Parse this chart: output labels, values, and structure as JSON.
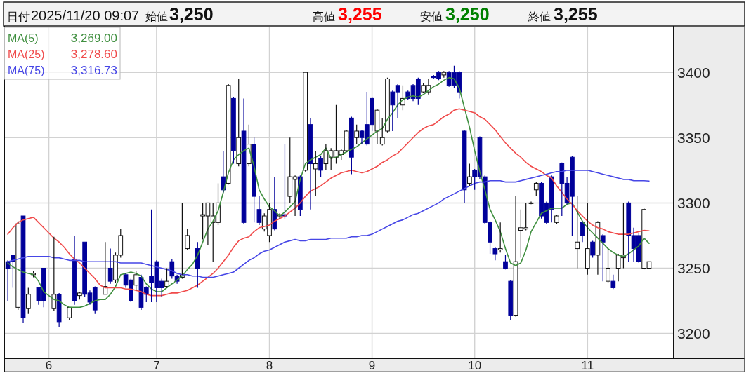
{
  "chart_data": {
    "type": "candlestick",
    "annotations": [
      "日付",
      "2025/11/20 09:07",
      "始値",
      "3,250",
      "高値",
      "3,255",
      "安値",
      "3,250",
      "終値",
      "3,255",
      "3,269.00",
      "3,278.60",
      "3,316.73"
    ],
    "categories": [
      null,
      null,
      null,
      null,
      null,
      null,
      null,
      null,
      "6",
      null,
      null,
      null,
      null,
      null,
      null,
      null,
      null,
      null,
      null,
      null,
      null,
      null,
      null,
      null,
      null,
      null,
      null,
      null,
      null,
      "7",
      null,
      null,
      null,
      null,
      null,
      null,
      null,
      null,
      null,
      null,
      null,
      null,
      null,
      null,
      null,
      null,
      null,
      null,
      null,
      null,
      null,
      "8",
      null,
      null,
      null,
      null,
      null,
      null,
      null,
      null,
      null,
      null,
      null,
      null,
      null,
      null,
      null,
      null,
      null,
      null,
      null,
      "9",
      null,
      null,
      null,
      null,
      null,
      null,
      null,
      null,
      null,
      null,
      null,
      null,
      null,
      null,
      null,
      null,
      null,
      null,
      null,
      "10",
      null,
      null,
      null,
      null,
      null,
      null,
      null,
      null,
      null,
      null,
      null,
      null,
      null,
      null,
      null,
      null,
      null,
      null,
      null,
      null,
      null,
      "11",
      null,
      null,
      null,
      null,
      null,
      null,
      null,
      null,
      null,
      null,
      null,
      null
    ],
    "ohlc": [
      [
        3255,
        3256,
        3225,
        3250
      ],
      [
        3260,
        3260,
        3235,
        3255
      ],
      [
        3220,
        3286,
        3218,
        3284
      ],
      [
        3290,
        3290,
        3208,
        3212
      ],
      [
        3219,
        3235,
        3215,
        3230
      ],
      [
        3245,
        3248,
        3243,
        3246
      ],
      [
        3235,
        3235,
        3222,
        3225
      ],
      [
        3250,
        3250,
        3220,
        3225
      ],
      null,
      [
        3219,
        3274,
        3217,
        3230
      ],
      [
        3230,
        3231,
        3205,
        3209
      ],
      null,
      [
        3212,
        3220,
        3210,
        3220
      ],
      [
        3257,
        3275,
        3222,
        3225
      ],
      [
        3229,
        3232,
        3226,
        3231
      ],
      [
        3270,
        3270,
        3228,
        3230
      ],
      [
        3231,
        3233,
        3222,
        3224
      ],
      [
        3235,
        3236,
        3215,
        3218
      ],
      null,
      [
        3230,
        3270,
        3230,
        3236
      ],
      [
        3250,
        3265,
        3238,
        3240
      ],
      [
        3241,
        3262,
        3239,
        3260
      ],
      [
        3260,
        3280,
        3258,
        3275
      ],
      [
        3245,
        3246,
        3235,
        3237
      ],
      [
        3241,
        3242,
        3224,
        3225
      ],
      [
        3237,
        3248,
        3233,
        3245
      ],
      [
        3243,
        3245,
        3218,
        3220
      ],
      [
        3235,
        3236,
        3224,
        3230
      ],
      [
        3244,
        3295,
        3224,
        3239
      ],
      [
        3255,
        3256,
        3224,
        3235
      ],
      [
        3240,
        3242,
        3228,
        3235
      ],
      [
        3236,
        3250,
        3235,
        3240
      ],
      [
        3255,
        3257,
        3242,
        3244
      ],
      [
        3244,
        3245,
        3238,
        3240
      ],
      [
        3243,
        3300,
        3242,
        3245
      ],
      [
        3265,
        3280,
        3264,
        3275
      ],
      null,
      [
        3265,
        3270,
        3235,
        3250
      ],
      [
        3290,
        3300,
        3272,
        3291
      ],
      [
        3290,
        3300,
        3268,
        3300
      ],
      [
        3285,
        3300,
        3255,
        3290
      ],
      [
        3285,
        3315,
        3283,
        3300
      ],
      [
        3320,
        3340,
        3308,
        3310
      ],
      [
        3315,
        3391,
        3314,
        3390
      ],
      [
        3380,
        3381,
        3330,
        3340
      ],
      [
        3330,
        3395,
        3328,
        3350
      ],
      [
        3355,
        3380,
        3284,
        3285
      ],
      [
        3330,
        3360,
        3328,
        3345
      ],
      [
        3345,
        3350,
        3285,
        3305
      ],
      [
        3295,
        3305,
        3283,
        3285
      ],
      [
        3280,
        3292,
        3278,
        3290
      ],
      [
        3275,
        3300,
        3270,
        3295
      ],
      [
        3295,
        3320,
        3279,
        3280
      ],
      [
        3290,
        3292,
        3288,
        3291
      ],
      [
        3291,
        3345,
        3288,
        3290
      ],
      [
        3305,
        3350,
        3300,
        3320
      ],
      [
        3318,
        3321,
        3290,
        3320
      ],
      [
        3320,
        3321,
        3290,
        3295
      ],
      [
        3325,
        3400,
        3324,
        3400
      ],
      [
        3360,
        3365,
        3295,
        3330
      ],
      [
        3326,
        3340,
        3305,
        3330
      ],
      [
        3334,
        3336,
        3320,
        3325
      ],
      [
        3330,
        3345,
        3325,
        3340
      ],
      [
        3335,
        3342,
        3325,
        3340
      ],
      [
        3335,
        3375,
        3330,
        3340
      ],
      [
        3337,
        3341,
        3333,
        3340
      ],
      [
        3340,
        3356,
        3339,
        3355
      ],
      [
        3365,
        3366,
        3322,
        3335
      ],
      [
        3350,
        3360,
        3345,
        3355
      ],
      [
        3355,
        3356,
        3345,
        3350
      ],
      [
        3360,
        3385,
        3344,
        3345
      ],
      [
        3380,
        3381,
        3355,
        3360
      ],
      [
        3355,
        3372,
        3345,
        3371
      ],
      [
        3345,
        3365,
        3344,
        3350
      ],
      [
        3355,
        3396,
        3354,
        3395
      ],
      [
        3385,
        3386,
        3355,
        3375
      ],
      [
        3390,
        3391,
        3365,
        3385
      ],
      [
        3375,
        3390,
        3371,
        3380
      ],
      [
        3385,
        3386,
        3379,
        3380
      ],
      [
        3390,
        3391,
        3378,
        3380
      ],
      [
        3395,
        3396,
        3375,
        3380
      ],
      [
        3385,
        3392,
        3384,
        3390
      ],
      [
        3385,
        3395,
        3383,
        3390
      ],
      [
        3397,
        3398,
        3395,
        3396
      ],
      [
        3400,
        3401,
        3394,
        3395
      ],
      [
        3398,
        3401,
        3396,
        3400
      ],
      [
        3400,
        3401,
        3389,
        3390
      ],
      [
        3400,
        3405,
        3388,
        3390
      ],
      [
        3400,
        3401,
        3380,
        3385
      ],
      [
        3355,
        3356,
        3300,
        3310
      ],
      [
        3315,
        3330,
        3313,
        3320
      ],
      [
        3325,
        3326,
        3310,
        3320
      ],
      [
        3350,
        3351,
        3318,
        3320
      ],
      [
        3320,
        3321,
        3284,
        3285
      ],
      [
        3285,
        3286,
        3261,
        3270
      ],
      [
        3265,
        3266,
        3256,
        3261
      ],
      [
        3264,
        3285,
        3262,
        3265
      ],
      [
        3255,
        3260,
        3249,
        3250
      ],
      [
        3240,
        3241,
        3210,
        3214
      ],
      [
        3214,
        3305,
        3213,
        3255
      ],
      [
        3279,
        3295,
        3258,
        3281
      ],
      [
        3280,
        3300,
        3279,
        3281
      ],
      [
        3300,
        3301,
        3299,
        3300
      ],
      [
        3310,
        3316,
        3305,
        3315
      ],
      [
        3315,
        3316,
        3288,
        3290
      ],
      [
        3300,
        3301,
        3284,
        3285
      ],
      [
        3320,
        3321,
        3285,
        3295
      ],
      [
        3285,
        3291,
        3284,
        3290
      ],
      [
        3330,
        3331,
        3290,
        3315
      ],
      [
        3315,
        3320,
        3299,
        3300
      ],
      [
        3335,
        3336,
        3275,
        3305
      ],
      [
        3265,
        3305,
        3250,
        3270
      ],
      [
        3285,
        3286,
        3270,
        3275
      ],
      [
        3250,
        3300,
        3245,
        3265
      ],
      [
        3270,
        3271,
        3258,
        3260
      ],
      [
        3260,
        3286,
        3245,
        3285
      ],
      [
        3275,
        3276,
        3240,
        3270
      ],
      [
        3240,
        3265,
        3239,
        3250
      ],
      [
        3240,
        3245,
        3234,
        3235
      ],
      [
        3250,
        3261,
        3240,
        3260
      ],
      [
        3258,
        3300,
        3250,
        3260
      ],
      [
        3300,
        3301,
        3255,
        3275
      ],
      [
        3275,
        3281,
        3255,
        3265
      ],
      [
        3275,
        3277,
        3254,
        3255
      ],
      [
        3250,
        3296,
        3249,
        3295
      ],
      [
        3250,
        3255,
        3250,
        3255
      ]
    ],
    "series": [
      {
        "name": "MA(5)",
        "type": "line",
        "color": "#3f8f3f",
        "values": [
          3254,
          3251,
          3249,
          3247,
          3246,
          3245,
          3240,
          3232,
          3229,
          3226,
          3225,
          3222,
          3220,
          3220,
          3220,
          3221,
          3223,
          3225,
          3226,
          3226,
          3230,
          3236,
          3245,
          3246,
          3247,
          3246,
          3244,
          3238,
          3234,
          3232,
          3232,
          3235,
          3238,
          3241,
          3244,
          3249,
          3253,
          3260,
          3270,
          3280,
          3286,
          3294,
          3308,
          3323,
          3333,
          3337,
          3340,
          3342,
          3328,
          3310,
          3303,
          3297,
          3294,
          3290,
          3293,
          3297,
          3301,
          3318,
          3330,
          3333,
          3335,
          3337,
          3342,
          3334,
          3335,
          3337,
          3339,
          3341,
          3343,
          3346,
          3349,
          3352,
          3355,
          3357,
          3364,
          3369,
          3375,
          3379,
          3381,
          3382,
          3381,
          3383,
          3386,
          3389,
          3391,
          3394,
          3396,
          3395,
          3388,
          3373,
          3358,
          3340,
          3324,
          3310,
          3295,
          3287,
          3278,
          3265,
          3254,
          3252,
          3254,
          3264,
          3278,
          3285,
          3292,
          3294,
          3296,
          3296,
          3296,
          3299,
          3300,
          3293,
          3286,
          3281,
          3277,
          3273,
          3269,
          3265,
          3262,
          3260,
          3259,
          3261,
          3264,
          3267,
          3273,
          3269.0
        ]
      },
      {
        "name": "MA(25)",
        "type": "line",
        "color": "#f04a4a",
        "values": [
          3276,
          3281,
          3285,
          3287,
          3288,
          3289,
          3285,
          3281,
          3277,
          3273,
          3270,
          3266,
          3261,
          3257,
          3254,
          3250,
          3246,
          3242,
          3237,
          3235,
          3235,
          3235,
          3235,
          3234,
          3234,
          3233,
          3232,
          3230,
          3229,
          3229,
          3229,
          3230,
          3231,
          3231,
          3232,
          3233,
          3235,
          3237,
          3240,
          3243,
          3246,
          3250,
          3255,
          3260,
          3266,
          3271,
          3273,
          3274,
          3278,
          3281,
          3282,
          3283,
          3286,
          3288,
          3290,
          3293,
          3296,
          3300,
          3305,
          3309,
          3311,
          3313,
          3316,
          3319,
          3321,
          3323,
          3324,
          3325,
          3324,
          3323,
          3324,
          3326,
          3328,
          3331,
          3333,
          3336,
          3338,
          3342,
          3346,
          3350,
          3354,
          3357,
          3359,
          3360,
          3363,
          3366,
          3368,
          3371,
          3372,
          3371,
          3370,
          3369,
          3366,
          3364,
          3360,
          3356,
          3351,
          3346,
          3342,
          3338,
          3335,
          3331,
          3328,
          3326,
          3324,
          3321,
          3319,
          3313,
          3308,
          3303,
          3299,
          3294,
          3290,
          3286,
          3283,
          3281,
          3280,
          3278,
          3277,
          3276,
          3276,
          3276,
          3277,
          3278,
          3279,
          3278.6
        ]
      },
      {
        "name": "MA(75)",
        "type": "line",
        "color": "#4646e6",
        "values": [
          3255,
          3256,
          3257,
          3258,
          3259,
          3259,
          3259,
          3259,
          3259,
          3258,
          3258,
          3257,
          3256,
          3256,
          3256,
          3255,
          3255,
          3255,
          3255,
          3255,
          3255,
          3255,
          3254,
          3254,
          3254,
          3254,
          3254,
          3253,
          3252,
          3251,
          3250,
          3249,
          3248,
          3246,
          3245,
          3245,
          3244,
          3244,
          3243,
          3243,
          3243,
          3244,
          3245,
          3246,
          3247,
          3250,
          3253,
          3256,
          3258,
          3261,
          3263,
          3264,
          3266,
          3268,
          3270,
          3271,
          3272,
          3271,
          3271,
          3272,
          3272,
          3272,
          3272,
          3273,
          3273,
          3273,
          3273,
          3274,
          3274,
          3275,
          3275,
          3276,
          3278,
          3280,
          3282,
          3284,
          3286,
          3287,
          3289,
          3291,
          3292,
          3294,
          3296,
          3298,
          3300,
          3303,
          3305,
          3307,
          3309,
          3311,
          3313,
          3315,
          3316,
          3316,
          3317,
          3317,
          3317,
          3316,
          3316,
          3316,
          3317,
          3318,
          3319,
          3320,
          3321,
          3322,
          3323,
          3324,
          3324,
          3325,
          3325,
          3325,
          3325,
          3325,
          3324,
          3323,
          3322,
          3321,
          3320,
          3319,
          3318,
          3318,
          3317,
          3317,
          3317,
          3316.73
        ]
      }
    ],
    "ylim": [
      3181,
      3435
    ],
    "yticks": [
      3200,
      3250,
      3300,
      3350,
      3400
    ],
    "grid": true,
    "legend": "top left"
  }
}
